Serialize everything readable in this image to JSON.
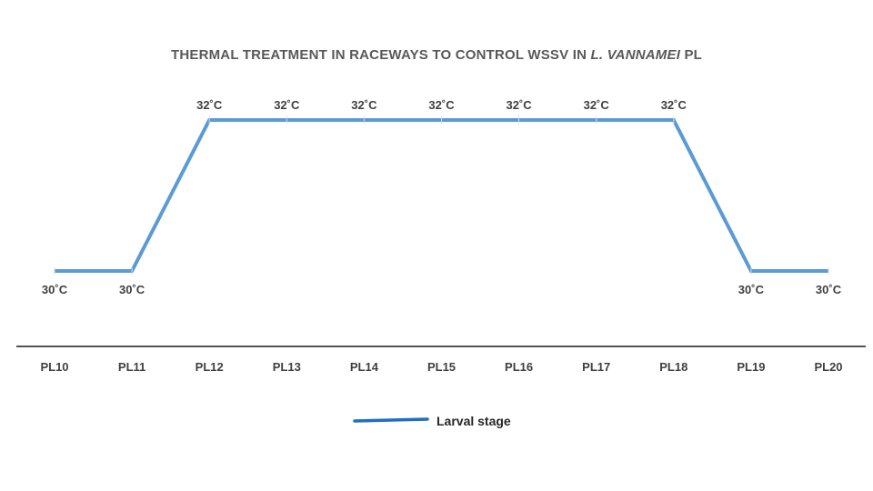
{
  "chart_data": {
    "type": "line",
    "title_parts": [
      "THERMAL TREATMENT IN RACEWAYS TO CONTROL WSSV IN ",
      "L. VANNAMEI",
      " PL"
    ],
    "categories": [
      "PL10",
      "PL11",
      "PL12",
      "PL13",
      "PL14",
      "PL15",
      "PL16",
      "PL17",
      "PL18",
      "PL19",
      "PL20"
    ],
    "series": [
      {
        "name": "Larval stage",
        "values": [
          30,
          30,
          32,
          32,
          32,
          32,
          32,
          32,
          32,
          30,
          30
        ],
        "color": "#5b9bd5"
      }
    ],
    "data_labels": [
      "30˚C",
      "30˚C",
      "32˚C",
      "32˚C",
      "32˚C",
      "32˚C",
      "32˚C",
      "32˚C",
      "32˚C",
      "30˚C",
      "30˚C"
    ],
    "legend_position": "bottom",
    "legend_line_color": "#1f6fbf",
    "grid": false,
    "xlabel": "",
    "ylabel": ""
  }
}
